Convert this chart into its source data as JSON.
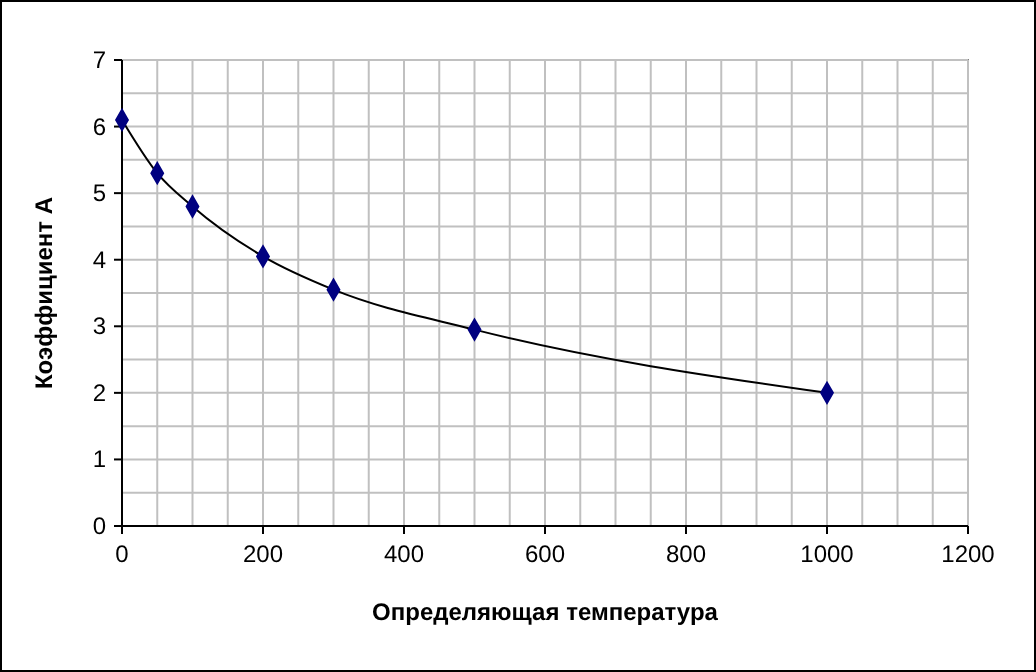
{
  "chart_data": {
    "type": "line",
    "xlabel": "Определяющая температура",
    "ylabel": "Коэффициент A",
    "x": [
      0,
      50,
      100,
      200,
      300,
      500,
      1000
    ],
    "series": [
      {
        "color": "#000080",
        "values": [
          6.1,
          5.3,
          4.8,
          4.05,
          3.55,
          2.95,
          2.0
        ]
      }
    ],
    "xlim": [
      0,
      1200
    ],
    "ylim": [
      0,
      7
    ],
    "xticks": [
      0,
      {
        "value": 50,
        "label": null
      },
      200,
      {
        "value": 100,
        "label": null
      },
      {
        "value": 150,
        "label": null
      },
      {
        "value": 250,
        "label": null
      },
      {
        "value": 300,
        "label": null
      },
      {
        "value": 350,
        "label": null
      },
      400,
      {
        "value": 450,
        "label": null
      },
      {
        "value": 500,
        "label": null
      },
      {
        "value": 550,
        "label": null
      },
      600,
      {
        "value": 650,
        "label": null
      },
      {
        "value": 700,
        "label": null
      },
      {
        "value": 750,
        "label": null
      },
      800,
      {
        "value": 850,
        "label": null
      },
      {
        "value": 900,
        "label": null
      },
      {
        "value": 950,
        "label": null
      },
      1000,
      {
        "value": 1050,
        "label": null
      },
      {
        "value": 1100,
        "label": null
      },
      {
        "value": 1150,
        "label": null
      },
      1200
    ],
    "yticks": [
      0,
      {
        "value": 0.5,
        "label": null
      },
      1,
      {
        "value": 1.5,
        "label": null
      },
      2,
      {
        "value": 2.5,
        "label": null
      },
      3,
      {
        "value": 3.5,
        "label": null
      },
      4,
      {
        "value": 4.5,
        "label": null
      },
      5,
      {
        "value": 5.5,
        "label": null
      },
      6,
      {
        "value": 6.5,
        "label": null
      },
      7
    ],
    "grid": true,
    "marker": "diamond",
    "line_style": "solid"
  }
}
